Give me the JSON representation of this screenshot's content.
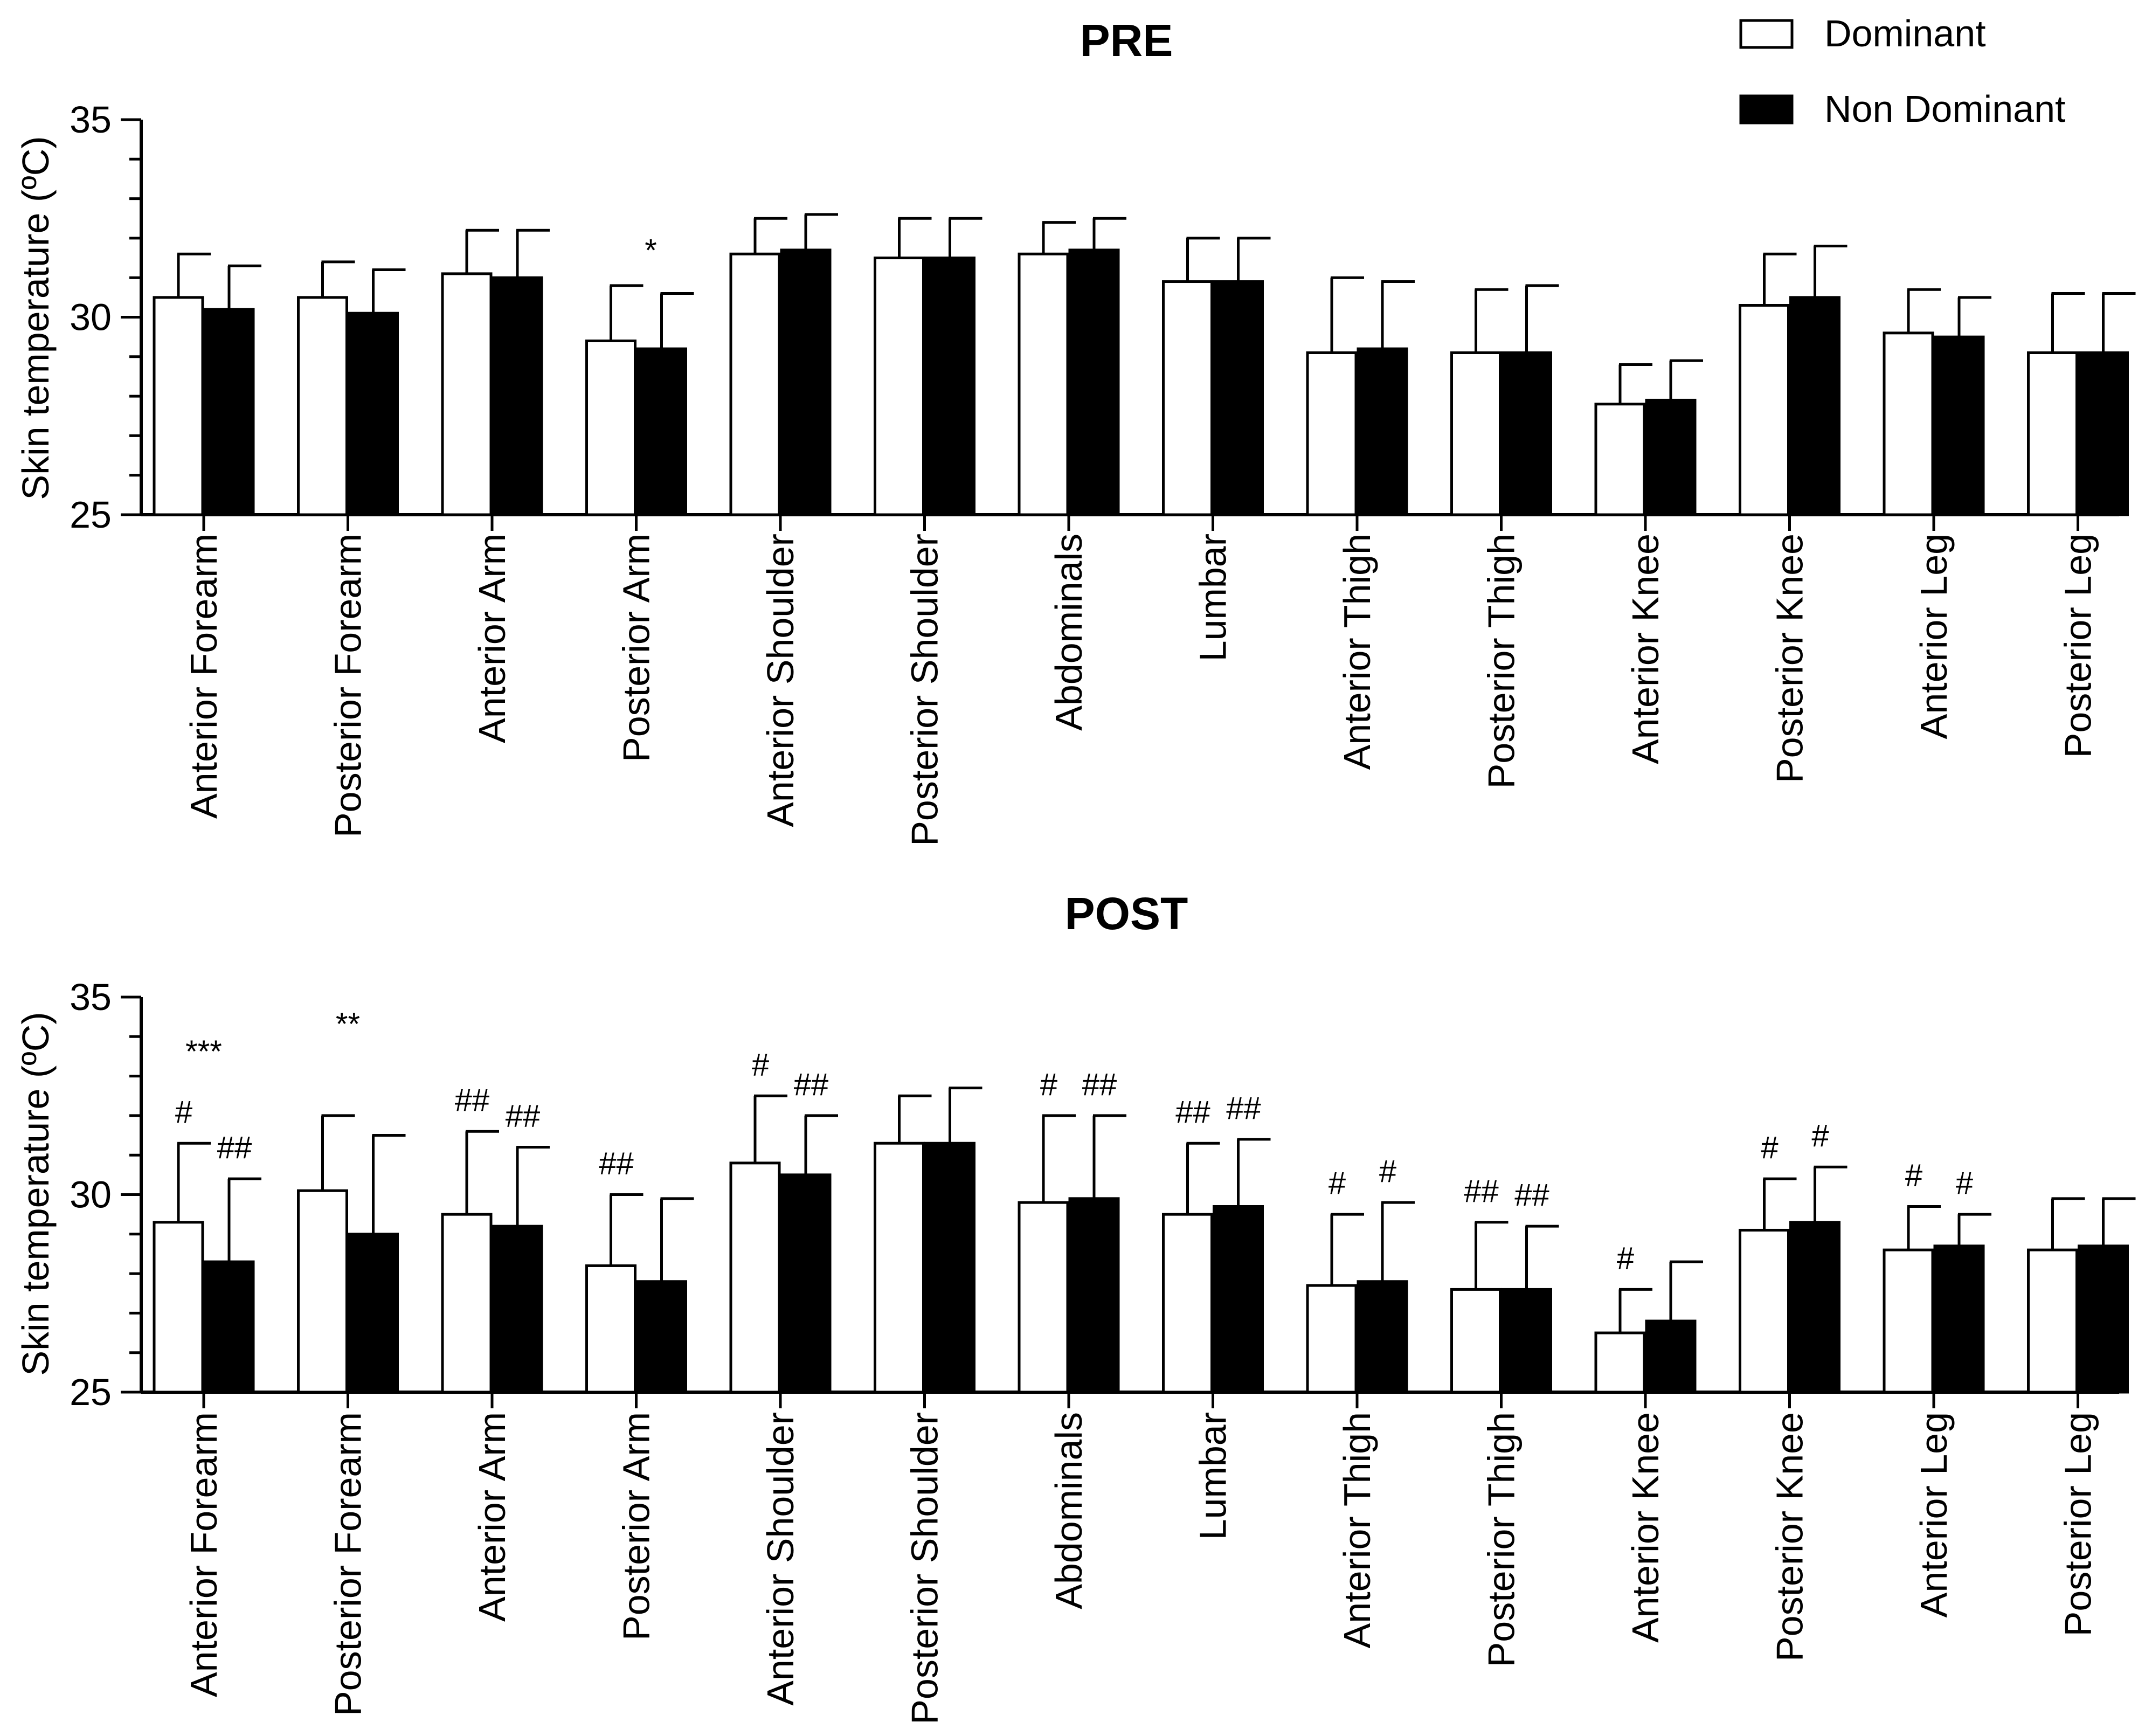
{
  "legend": {
    "dominant_label": "Dominant",
    "non_dominant_label": "Non Dominant"
  },
  "colors": {
    "dominant_fill": "#ffffff",
    "non_dominant_fill": "#000000",
    "stroke": "#000000"
  },
  "chart_data": [
    {
      "type": "bar",
      "title": "PRE",
      "ylabel": "Skin temperature (ºC)",
      "xlabel": "",
      "ylim": [
        25,
        35
      ],
      "yticks": [
        25,
        30,
        35
      ],
      "legend_position": "top-right",
      "categories": [
        "Anterior Forearm",
        "Posterior Forearm",
        "Anterior Arm",
        "Posterior Arm",
        "Anterior Shoulder",
        "Posterior Shoulder",
        "Abdominals",
        "Lumbar",
        "Anterior Thigh",
        "Posterior Thigh",
        "Anterior Knee",
        "Posterior Knee",
        "Anterior Leg",
        "Posterior Leg"
      ],
      "series": [
        {
          "name": "Dominant",
          "values": [
            30.5,
            30.5,
            31.1,
            29.4,
            31.6,
            31.5,
            31.6,
            30.9,
            29.1,
            29.1,
            27.8,
            30.3,
            29.6,
            29.1
          ],
          "error": [
            1.1,
            0.9,
            1.1,
            1.4,
            0.9,
            1.0,
            0.8,
            1.1,
            1.9,
            1.6,
            1.0,
            1.3,
            1.1,
            1.5
          ]
        },
        {
          "name": "Non Dominant",
          "values": [
            30.2,
            30.1,
            31.0,
            29.2,
            31.7,
            31.5,
            31.7,
            30.9,
            29.2,
            29.1,
            27.9,
            30.5,
            29.5,
            29.1
          ],
          "error": [
            1.1,
            1.1,
            1.2,
            1.4,
            0.9,
            1.0,
            0.8,
            1.1,
            1.7,
            1.7,
            1.0,
            1.3,
            1.0,
            1.5
          ]
        }
      ],
      "annotations": [
        {
          "category": "Posterior Arm",
          "series": "Non Dominant",
          "text": "*"
        }
      ]
    },
    {
      "type": "bar",
      "title": "POST",
      "ylabel": "Skin temperature (ºC)",
      "xlabel": "",
      "ylim": [
        25,
        35
      ],
      "yticks": [
        25,
        30,
        35
      ],
      "categories": [
        "Anterior Forearm",
        "Posterior Forearm",
        "Anterior Arm",
        "Posterior Arm",
        "Anterior Shoulder",
        "Posterior Shoulder",
        "Abdominals",
        "Lumbar",
        "Anterior Thigh",
        "Posterior Thigh",
        "Anterior Knee",
        "Posterior Knee",
        "Anterior Leg",
        "Posterior Leg"
      ],
      "series": [
        {
          "name": "Dominant",
          "values": [
            29.3,
            30.1,
            29.5,
            28.2,
            30.8,
            31.3,
            29.8,
            29.5,
            27.7,
            27.6,
            26.5,
            29.1,
            28.6,
            28.6
          ],
          "error": [
            2.0,
            1.9,
            2.1,
            1.8,
            1.7,
            1.2,
            2.2,
            1.8,
            1.8,
            1.7,
            1.1,
            1.3,
            1.1,
            1.3
          ]
        },
        {
          "name": "Non Dominant",
          "values": [
            28.3,
            29.0,
            29.2,
            27.8,
            30.5,
            31.3,
            29.9,
            29.7,
            27.8,
            27.6,
            26.8,
            29.3,
            28.7,
            28.7
          ],
          "error": [
            2.1,
            2.5,
            2.0,
            2.1,
            1.5,
            1.4,
            2.1,
            1.7,
            2.0,
            1.6,
            1.5,
            1.4,
            0.8,
            1.2
          ]
        }
      ],
      "annotations": [
        {
          "category": "Anterior Forearm",
          "series": "Dominant",
          "text": "#"
        },
        {
          "category": "Anterior Forearm",
          "series": "Non Dominant",
          "text": "##"
        },
        {
          "category": "Anterior Forearm",
          "series": "pair",
          "text": "***"
        },
        {
          "category": "Posterior Forearm",
          "series": "pair",
          "text": "**"
        },
        {
          "category": "Anterior Arm",
          "series": "Dominant",
          "text": "##"
        },
        {
          "category": "Anterior Arm",
          "series": "Non Dominant",
          "text": "##"
        },
        {
          "category": "Posterior Arm",
          "series": "Dominant",
          "text": "##"
        },
        {
          "category": "Anterior Shoulder",
          "series": "Dominant",
          "text": "#"
        },
        {
          "category": "Anterior Shoulder",
          "series": "Non Dominant",
          "text": "##"
        },
        {
          "category": "Abdominals",
          "series": "Dominant",
          "text": "#"
        },
        {
          "category": "Abdominals",
          "series": "Non Dominant",
          "text": "##"
        },
        {
          "category": "Lumbar",
          "series": "Dominant",
          "text": "##"
        },
        {
          "category": "Lumbar",
          "series": "Non Dominant",
          "text": "##"
        },
        {
          "category": "Anterior Thigh",
          "series": "Dominant",
          "text": "#"
        },
        {
          "category": "Anterior Thigh",
          "series": "Non Dominant",
          "text": "#"
        },
        {
          "category": "Posterior Thigh",
          "series": "Dominant",
          "text": "##"
        },
        {
          "category": "Posterior Thigh",
          "series": "Non Dominant",
          "text": "##"
        },
        {
          "category": "Anterior Knee",
          "series": "Dominant",
          "text": "#"
        },
        {
          "category": "Posterior Knee",
          "series": "Dominant",
          "text": "#"
        },
        {
          "category": "Posterior Knee",
          "series": "Non Dominant",
          "text": "#"
        },
        {
          "category": "Anterior Leg",
          "series": "Dominant",
          "text": "#"
        },
        {
          "category": "Anterior Leg",
          "series": "Non Dominant",
          "text": "#"
        }
      ]
    }
  ]
}
